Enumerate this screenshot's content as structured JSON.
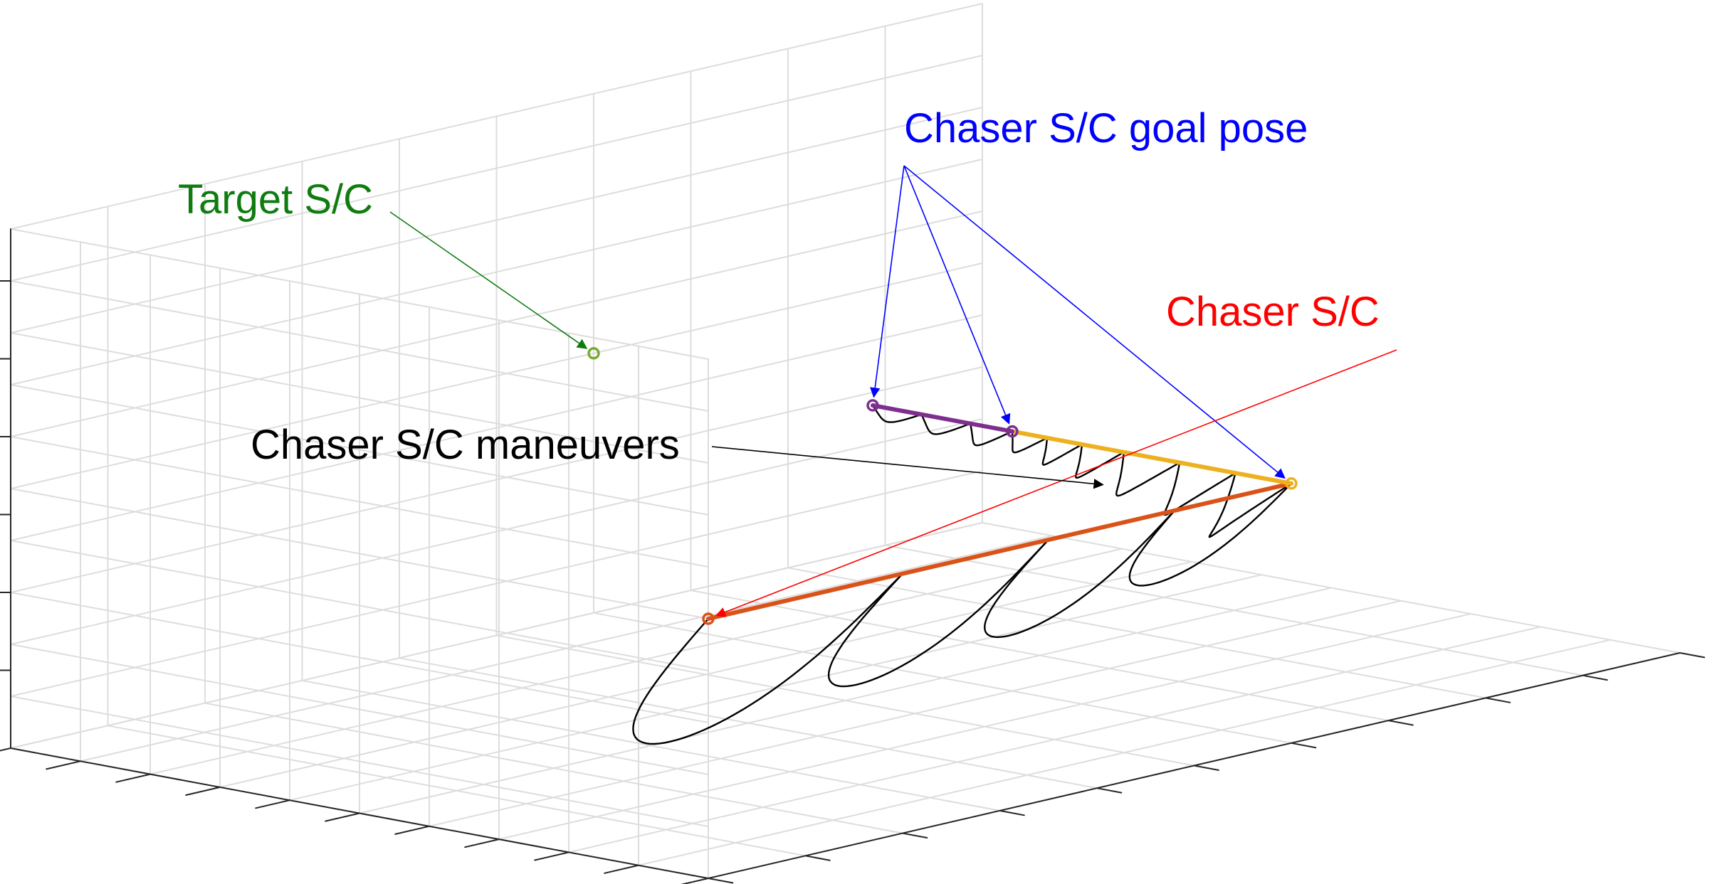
{
  "chart_data": {
    "type": "line",
    "title": "",
    "xlabel": "",
    "ylabel": "",
    "zlabel": "",
    "view": "3d-perspective",
    "grid": true,
    "tick_labels_visible": false,
    "colors": {
      "target": "#77AC30",
      "goal": "#7E2F8E",
      "approach": "#EDB120",
      "chaser_leg": "#D95319",
      "maneuver": "#000000",
      "target_label": "#107C10",
      "goal_label": "#0000FF",
      "chaser_label": "#FF0000",
      "maneuver_label": "#000000",
      "grid": "#DDDDDD",
      "axis": "#262626"
    },
    "series": [
      {
        "key": "chaser_leg",
        "path": [
          [
            0.0,
            0.0,
            0.5
          ],
          [
            0.6,
            0.0,
            0.5
          ]
        ]
      },
      {
        "key": "approach",
        "path": [
          [
            0.6,
            0.0,
            0.5
          ],
          [
            0.6,
            0.4,
            0.5
          ]
        ]
      },
      {
        "key": "goal",
        "path": [
          [
            0.6,
            0.4,
            0.5
          ],
          [
            0.6,
            0.6,
            0.5
          ]
        ]
      }
    ],
    "markers": [
      {
        "key": "target",
        "point": [
          0.6,
          1.0,
          0.5
        ]
      },
      {
        "key": "goal",
        "point": [
          0.6,
          0.6,
          0.5
        ]
      },
      {
        "key": "goal",
        "point": [
          0.6,
          0.4,
          0.5
        ]
      },
      {
        "key": "approach",
        "point": [
          0.6,
          0.0,
          0.5
        ]
      },
      {
        "key": "chaser_leg",
        "point": [
          0.0,
          0.0,
          0.5
        ]
      }
    ],
    "maneuver_loops": [
      {
        "start": [
          0.0,
          0.0,
          0.5
        ],
        "end": [
          0.2,
          0.0,
          0.5
        ],
        "depth": 0.5
      },
      {
        "start": [
          0.2,
          0.0,
          0.5
        ],
        "end": [
          0.35,
          0.0,
          0.5
        ],
        "depth": 0.44
      },
      {
        "start": [
          0.35,
          0.0,
          0.5
        ],
        "end": [
          0.48,
          0.0,
          0.5
        ],
        "depth": 0.38
      },
      {
        "start": [
          0.48,
          0.0,
          0.5
        ],
        "end": [
          0.6,
          0.0,
          0.5
        ],
        "depth": 0.3
      },
      {
        "start": [
          0.6,
          0.0,
          0.5
        ],
        "end": [
          0.6,
          0.08,
          0.5
        ],
        "depth": 0.2
      },
      {
        "start": [
          0.6,
          0.08,
          0.5
        ],
        "end": [
          0.6,
          0.16,
          0.5
        ],
        "depth": 0.16
      },
      {
        "start": [
          0.6,
          0.16,
          0.5
        ],
        "end": [
          0.6,
          0.24,
          0.5
        ],
        "depth": 0.13
      },
      {
        "start": [
          0.6,
          0.24,
          0.5
        ],
        "end": [
          0.6,
          0.3,
          0.5
        ],
        "depth": 0.1
      },
      {
        "start": [
          0.6,
          0.3,
          0.5
        ],
        "end": [
          0.6,
          0.35,
          0.5
        ],
        "depth": 0.08
      },
      {
        "start": [
          0.6,
          0.35,
          0.5
        ],
        "end": [
          0.6,
          0.4,
          0.5
        ],
        "depth": 0.06
      },
      {
        "start": [
          0.6,
          0.4,
          0.5
        ],
        "end": [
          0.6,
          0.46,
          0.5
        ],
        "depth": 0.06
      },
      {
        "start": [
          0.6,
          0.46,
          0.5
        ],
        "end": [
          0.6,
          0.53,
          0.5
        ],
        "depth": 0.05
      },
      {
        "start": [
          0.6,
          0.53,
          0.5
        ],
        "end": [
          0.6,
          0.6,
          0.5
        ],
        "depth": 0.04
      }
    ],
    "annotations": [
      {
        "key": "target_label",
        "text": "Target S/C",
        "arrows_to": [
          [
            0.6,
            1.0,
            0.5
          ]
        ]
      },
      {
        "key": "goal_label",
        "text": "Chaser S/C goal pose",
        "arrows_to": [
          [
            0.6,
            0.6,
            0.5
          ],
          [
            0.6,
            0.4,
            0.5
          ],
          [
            0.6,
            0.0,
            0.5
          ]
        ]
      },
      {
        "key": "chaser_label",
        "text": "Chaser S/C",
        "arrows_to": [
          [
            0.0,
            0.0,
            0.5
          ]
        ]
      },
      {
        "key": "maneuver_label",
        "text": "Chaser S/C maneuvers",
        "arrows_to": [
          [
            0.6,
            0.27,
            0.43
          ]
        ]
      }
    ]
  }
}
